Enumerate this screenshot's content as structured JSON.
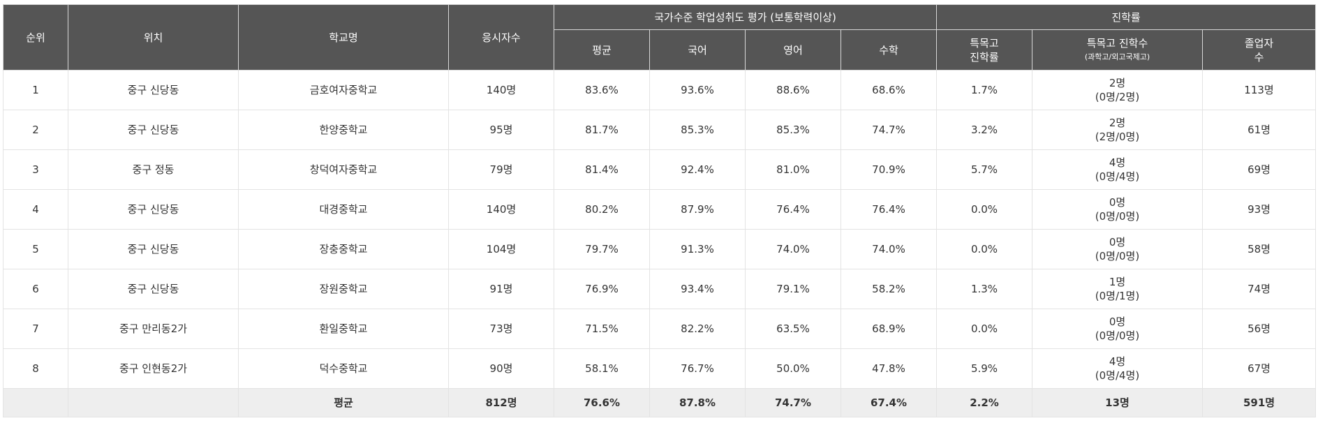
{
  "headers": {
    "rank": "순위",
    "location": "위치",
    "school": "학교명",
    "examinees": "응시자수",
    "national_group": "국가수준 학업성취도 평가 (보통학력이상)",
    "avg": "평균",
    "korean": "국어",
    "english": "영어",
    "math": "수학",
    "advance_group": "진학률",
    "special_rate_l1": "특목고",
    "special_rate_l2": "진학률",
    "special_count_l1": "특목고 진학수",
    "special_count_l2": "(과학고/외고국제고)",
    "graduates_l1": "졸업자",
    "graduates_l2": "수"
  },
  "rows": [
    {
      "rank": "1",
      "location": "중구 신당동",
      "school": "금호여자중학교",
      "examinees": "140명",
      "avg": "83.6%",
      "korean": "93.6%",
      "english": "88.6%",
      "math": "68.6%",
      "special_rate": "1.7%",
      "special_count": "2명",
      "special_breakdown": "(0명/2명)",
      "graduates": "113명"
    },
    {
      "rank": "2",
      "location": "중구 신당동",
      "school": "한양중학교",
      "examinees": "95명",
      "avg": "81.7%",
      "korean": "85.3%",
      "english": "85.3%",
      "math": "74.7%",
      "special_rate": "3.2%",
      "special_count": "2명",
      "special_breakdown": "(2명/0명)",
      "graduates": "61명"
    },
    {
      "rank": "3",
      "location": "중구 정동",
      "school": "창덕여자중학교",
      "examinees": "79명",
      "avg": "81.4%",
      "korean": "92.4%",
      "english": "81.0%",
      "math": "70.9%",
      "special_rate": "5.7%",
      "special_count": "4명",
      "special_breakdown": "(0명/4명)",
      "graduates": "69명"
    },
    {
      "rank": "4",
      "location": "중구 신당동",
      "school": "대경중학교",
      "examinees": "140명",
      "avg": "80.2%",
      "korean": "87.9%",
      "english": "76.4%",
      "math": "76.4%",
      "special_rate": "0.0%",
      "special_count": "0명",
      "special_breakdown": "(0명/0명)",
      "graduates": "93명"
    },
    {
      "rank": "5",
      "location": "중구 신당동",
      "school": "장충중학교",
      "examinees": "104명",
      "avg": "79.7%",
      "korean": "91.3%",
      "english": "74.0%",
      "math": "74.0%",
      "special_rate": "0.0%",
      "special_count": "0명",
      "special_breakdown": "(0명/0명)",
      "graduates": "58명"
    },
    {
      "rank": "6",
      "location": "중구 신당동",
      "school": "장원중학교",
      "examinees": "91명",
      "avg": "76.9%",
      "korean": "93.4%",
      "english": "79.1%",
      "math": "58.2%",
      "special_rate": "1.3%",
      "special_count": "1명",
      "special_breakdown": "(0명/1명)",
      "graduates": "74명"
    },
    {
      "rank": "7",
      "location": "중구 만리동2가",
      "school": "환일중학교",
      "examinees": "73명",
      "avg": "71.5%",
      "korean": "82.2%",
      "english": "63.5%",
      "math": "68.9%",
      "special_rate": "0.0%",
      "special_count": "0명",
      "special_breakdown": "(0명/0명)",
      "graduates": "56명"
    },
    {
      "rank": "8",
      "location": "중구 인현동2가",
      "school": "덕수중학교",
      "examinees": "90명",
      "avg": "58.1%",
      "korean": "76.7%",
      "english": "50.0%",
      "math": "47.8%",
      "special_rate": "5.9%",
      "special_count": "4명",
      "special_breakdown": "(0명/4명)",
      "graduates": "67명"
    }
  ],
  "average": {
    "label": "평균",
    "examinees": "812명",
    "avg": "76.6%",
    "korean": "87.8%",
    "english": "74.7%",
    "math": "67.4%",
    "special_rate": "2.2%",
    "special_count": "13명",
    "graduates": "591명"
  },
  "colors": {
    "header_bg": "#555555",
    "header_text": "#ffffff",
    "average_row_bg": "#eeeeee",
    "border": "#e3e3e3"
  }
}
